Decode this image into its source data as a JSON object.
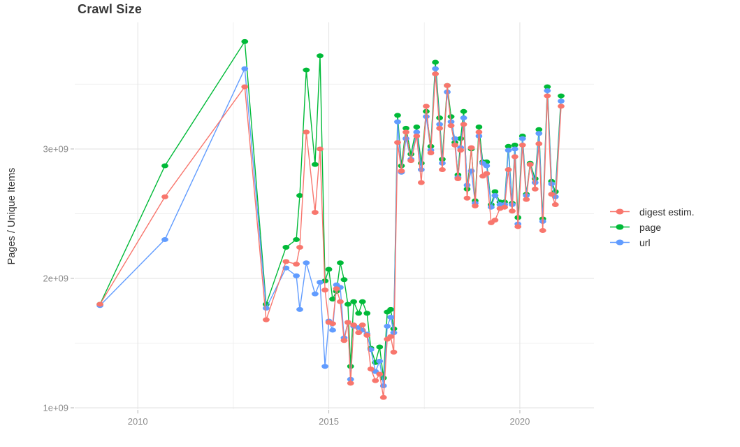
{
  "chart_data": {
    "type": "line",
    "title": "Crawl Size",
    "xlabel": "",
    "ylabel": "Pages / Unique Items",
    "legend_position": "right",
    "grid": true,
    "background": "#ffffff",
    "major_grid_color": "#e2e2e2",
    "minor_grid_color": "#f0f0f0",
    "tick_color": "#b5b5b5",
    "x_ticks": [
      2010,
      2015,
      2020
    ],
    "x_tick_labels": [
      "2010",
      "2015",
      "2020"
    ],
    "x_minor_ticks": [
      2012.5,
      2017.5
    ],
    "y_ticks": [
      1000000000.0,
      2000000000.0,
      3000000000.0
    ],
    "y_tick_labels": [
      "1e+09",
      "2e+09",
      "3e+09"
    ],
    "y_minor_ticks": [
      1500000000.0,
      2500000000.0,
      3500000000.0
    ],
    "xlim": [
      2008.35,
      2021.94
    ],
    "ylim": [
      989000000.0,
      3978000000.0
    ],
    "x_unit": "crawl date (decimal year)",
    "x": [
      2009.01,
      2010.71,
      2012.8,
      2013.36,
      2013.88,
      2014.15,
      2014.24,
      2014.41,
      2014.64,
      2014.77,
      2014.9,
      2015.0,
      2015.1,
      2015.2,
      2015.3,
      2015.4,
      2015.5,
      2015.57,
      2015.65,
      2015.78,
      2015.88,
      2016.0,
      2016.1,
      2016.22,
      2016.33,
      2016.43,
      2016.53,
      2016.62,
      2016.7,
      2016.8,
      2016.9,
      2017.02,
      2017.15,
      2017.3,
      2017.42,
      2017.55,
      2017.67,
      2017.79,
      2017.9,
      2017.97,
      2018.1,
      2018.2,
      2018.3,
      2018.38,
      2018.45,
      2018.53,
      2018.62,
      2018.73,
      2018.83,
      2018.93,
      2019.03,
      2019.13,
      2019.25,
      2019.35,
      2019.48,
      2019.6,
      2019.7,
      2019.8,
      2019.87,
      2019.95,
      2020.07,
      2020.17,
      2020.27,
      2020.4,
      2020.5,
      2020.6,
      2020.72,
      2020.83,
      2020.93,
      2021.08
    ],
    "series": [
      {
        "name": "digest estim.",
        "color": "#F8766D",
        "values": [
          1800000000.0,
          2630000000.0,
          3480000000.0,
          1680000000.0,
          2130000000.0,
          2110000000.0,
          2240000000.0,
          3130000000.0,
          2510000000.0,
          3000000000.0,
          1910000000.0,
          1660000000.0,
          1650000000.0,
          1920000000.0,
          1820000000.0,
          1520000000.0,
          1660000000.0,
          1190000000.0,
          1640000000.0,
          1580000000.0,
          1640000000.0,
          1560000000.0,
          1300000000.0,
          1210000000.0,
          1260000000.0,
          1080000000.0,
          1530000000.0,
          1550000000.0,
          1430000000.0,
          3050000000.0,
          2830000000.0,
          3130000000.0,
          2910000000.0,
          3100000000.0,
          2740000000.0,
          3330000000.0,
          2970000000.0,
          3580000000.0,
          3160000000.0,
          2840000000.0,
          3490000000.0,
          3180000000.0,
          3030000000.0,
          2770000000.0,
          2990000000.0,
          3190000000.0,
          2620000000.0,
          3010000000.0,
          2560000000.0,
          3130000000.0,
          2790000000.0,
          2810000000.0,
          2430000000.0,
          2450000000.0,
          2540000000.0,
          2550000000.0,
          2840000000.0,
          2520000000.0,
          2940000000.0,
          2400000000.0,
          3030000000.0,
          2610000000.0,
          2880000000.0,
          2690000000.0,
          3040000000.0,
          2370000000.0,
          3410000000.0,
          2650000000.0,
          2570000000.0,
          3330000000.0
        ]
      },
      {
        "name": "page",
        "color": "#00BA38",
        "values": [
          1800000000.0,
          2870000000.0,
          3830000000.0,
          1800000000.0,
          2240000000.0,
          2300000000.0,
          2640000000.0,
          3610000000.0,
          2880000000.0,
          3720000000.0,
          1980000000.0,
          2070000000.0,
          1840000000.0,
          1900000000.0,
          2120000000.0,
          1990000000.0,
          1800000000.0,
          1320000000.0,
          1820000000.0,
          1730000000.0,
          1820000000.0,
          1730000000.0,
          1460000000.0,
          1350000000.0,
          1470000000.0,
          1230000000.0,
          1740000000.0,
          1760000000.0,
          1610000000.0,
          3260000000.0,
          2870000000.0,
          3160000000.0,
          2960000000.0,
          3170000000.0,
          2890000000.0,
          3290000000.0,
          3020000000.0,
          3670000000.0,
          3240000000.0,
          2920000000.0,
          3490000000.0,
          3250000000.0,
          3050000000.0,
          2800000000.0,
          3080000000.0,
          3290000000.0,
          2690000000.0,
          3000000000.0,
          2600000000.0,
          3170000000.0,
          2900000000.0,
          2900000000.0,
          2570000000.0,
          2670000000.0,
          2590000000.0,
          2590000000.0,
          3020000000.0,
          2580000000.0,
          3030000000.0,
          2470000000.0,
          3100000000.0,
          2650000000.0,
          2890000000.0,
          2770000000.0,
          3150000000.0,
          2460000000.0,
          3480000000.0,
          2750000000.0,
          2670000000.0,
          3410000000.0
        ]
      },
      {
        "name": "url",
        "color": "#619CFF",
        "values": [
          1790000000.0,
          2300000000.0,
          3620000000.0,
          1770000000.0,
          2080000000.0,
          2020000000.0,
          1760000000.0,
          2120000000.0,
          1880000000.0,
          1970000000.0,
          1320000000.0,
          1670000000.0,
          1600000000.0,
          1950000000.0,
          1930000000.0,
          1540000000.0,
          1660000000.0,
          1220000000.0,
          1630000000.0,
          1620000000.0,
          1600000000.0,
          1570000000.0,
          1450000000.0,
          1280000000.0,
          1360000000.0,
          1170000000.0,
          1630000000.0,
          1700000000.0,
          1580000000.0,
          3210000000.0,
          2820000000.0,
          3080000000.0,
          2920000000.0,
          3130000000.0,
          2840000000.0,
          3250000000.0,
          2990000000.0,
          3620000000.0,
          3190000000.0,
          2890000000.0,
          3440000000.0,
          3210000000.0,
          3080000000.0,
          2780000000.0,
          3010000000.0,
          3240000000.0,
          2720000000.0,
          2830000000.0,
          2580000000.0,
          3100000000.0,
          2890000000.0,
          2870000000.0,
          2550000000.0,
          2640000000.0,
          2570000000.0,
          2570000000.0,
          2990000000.0,
          2570000000.0,
          3000000000.0,
          2420000000.0,
          3080000000.0,
          2640000000.0,
          2880000000.0,
          2740000000.0,
          3120000000.0,
          2440000000.0,
          3450000000.0,
          2730000000.0,
          2630000000.0,
          3370000000.0
        ]
      }
    ]
  }
}
